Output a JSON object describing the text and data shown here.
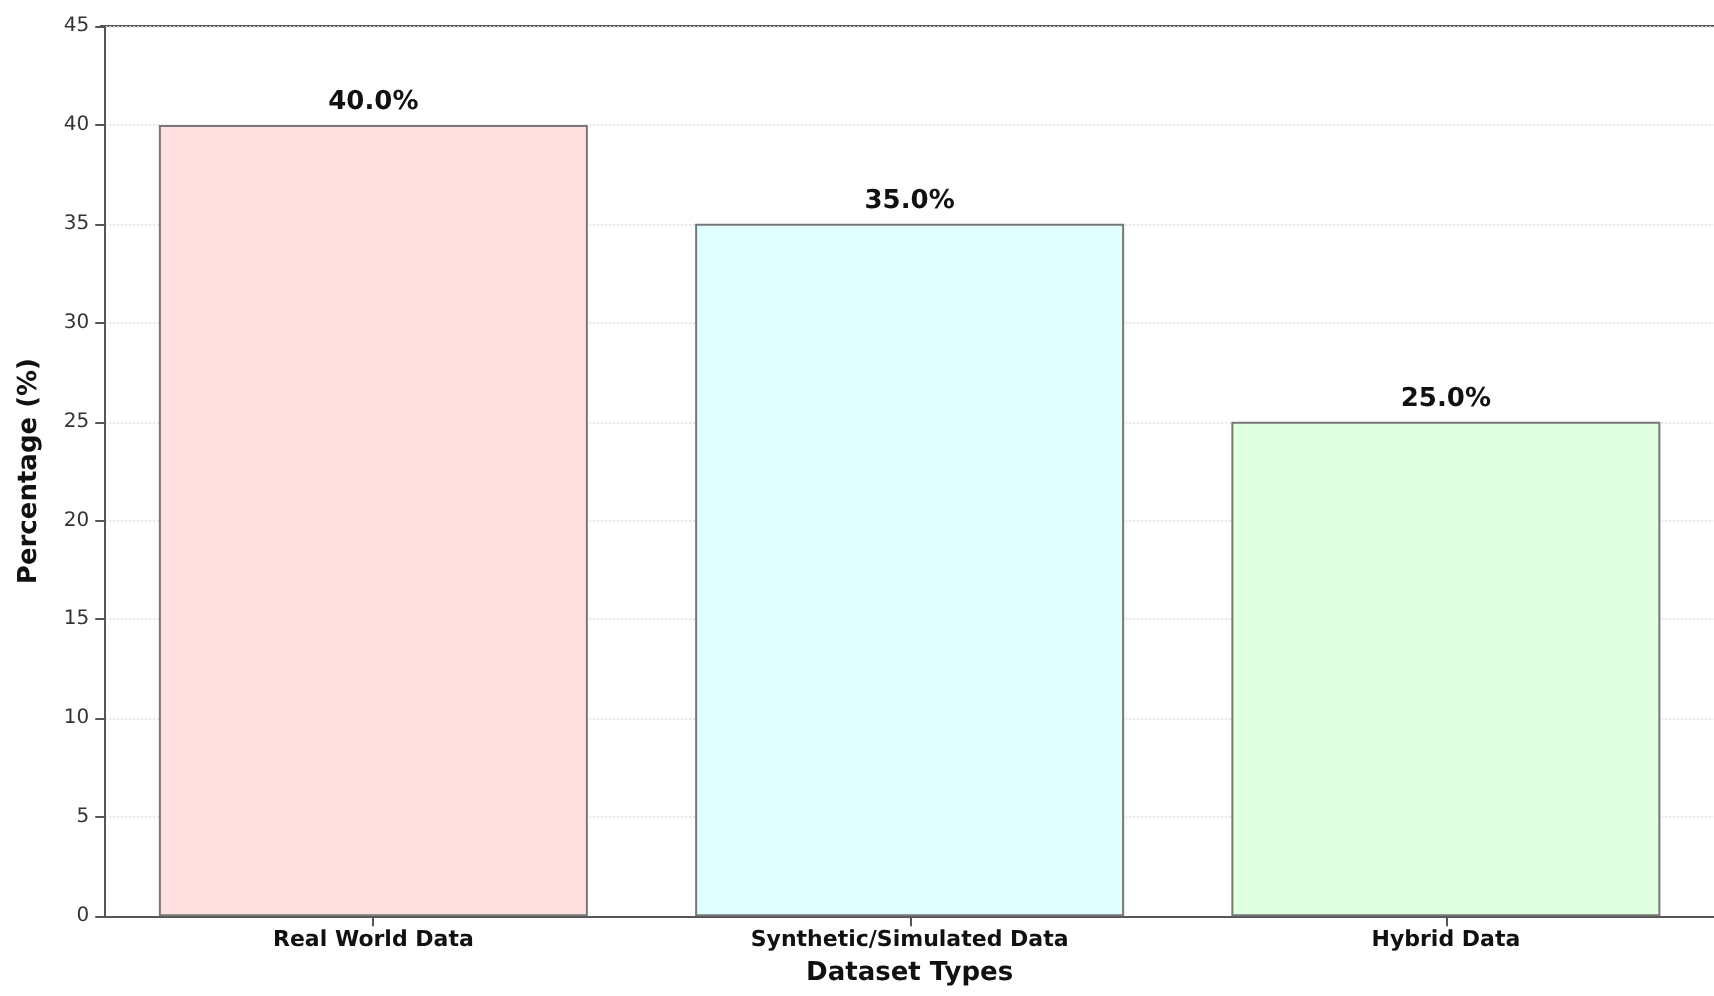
{
  "chart_data": {
    "type": "bar",
    "xlabel": "Dataset Types",
    "ylabel": "Percentage (%)",
    "categories": [
      "Real World Data",
      "Synthetic/Simulated Data",
      "Hybrid Data"
    ],
    "values": [
      40,
      35,
      25
    ],
    "colors": [
      "#ffe0e0",
      "#e0ffff",
      "#e0ffe0"
    ],
    "value_labels": [
      "40.0%",
      "35.0%",
      "25.0%"
    ],
    "ylim": [
      0,
      45
    ],
    "yticks": [
      0,
      5,
      10,
      15,
      20,
      25,
      30,
      35,
      40,
      45
    ],
    "grid": "y"
  }
}
